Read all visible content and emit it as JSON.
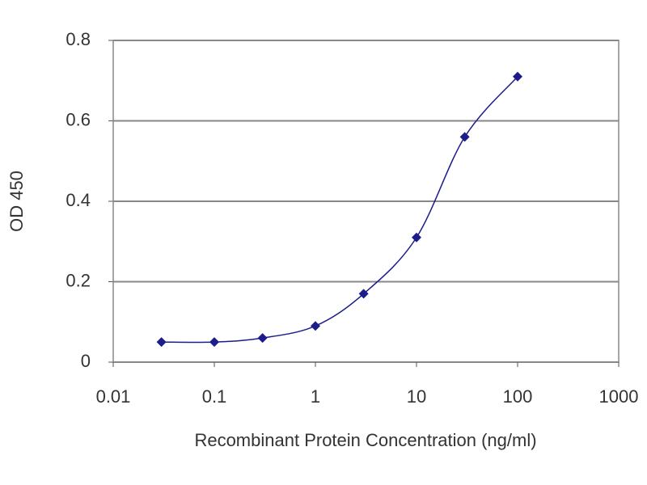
{
  "chart_data": {
    "type": "line",
    "x_label": "Recombinant Protein Concentration (ng/ml)",
    "y_label": "OD 450",
    "x": [
      0.03,
      0.1,
      0.3,
      1,
      3,
      10,
      30,
      100
    ],
    "series": [
      {
        "color": "#1c1c8a",
        "values": [
          0.05,
          0.05,
          0.06,
          0.09,
          0.17,
          0.31,
          0.56,
          0.71
        ]
      }
    ],
    "xscale": "log",
    "xlim": [
      0.01,
      1000
    ],
    "xticks": [
      0.01,
      0.1,
      1,
      10,
      100,
      1000
    ],
    "ylim": [
      0,
      0.8
    ],
    "yticks": [
      0,
      0.2,
      0.4,
      0.6,
      0.8
    ],
    "grid": true
  }
}
